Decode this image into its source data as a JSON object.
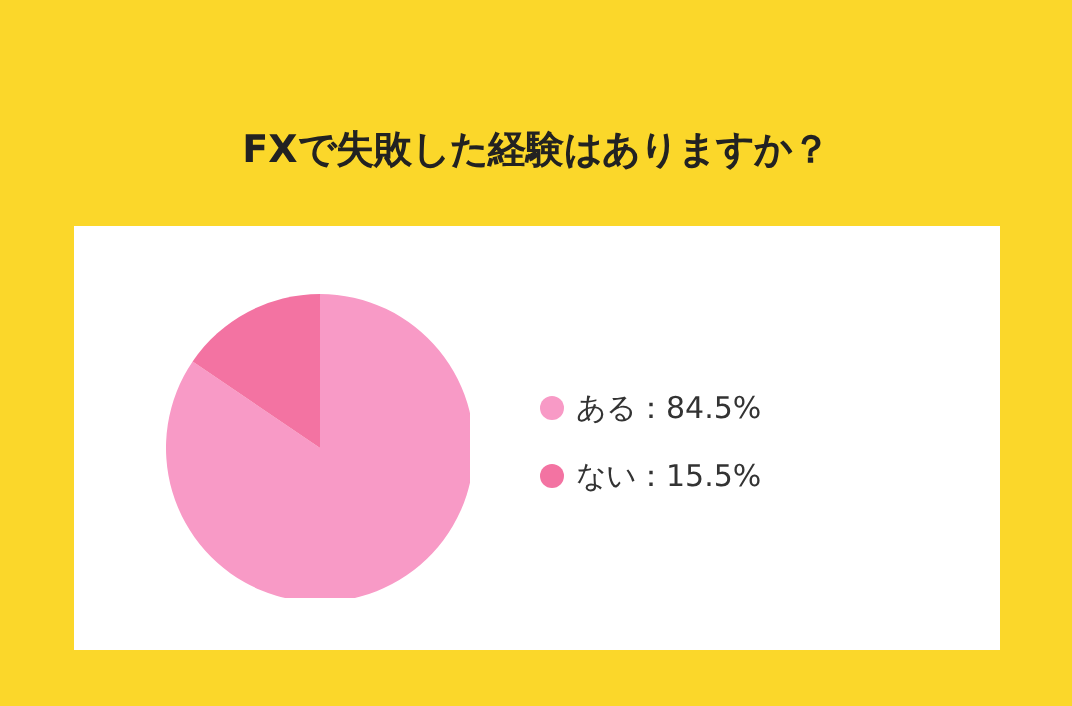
{
  "chart_data": {
    "type": "pie",
    "title": "FXで失敗した経験はありますか？",
    "categories": [
      "ある",
      "ない"
    ],
    "values": [
      84.5,
      15.5
    ],
    "colors": [
      "#f89ac6",
      "#f373a2"
    ],
    "value_labels": [
      "84.5%",
      "15.5%"
    ],
    "legend": "right"
  }
}
